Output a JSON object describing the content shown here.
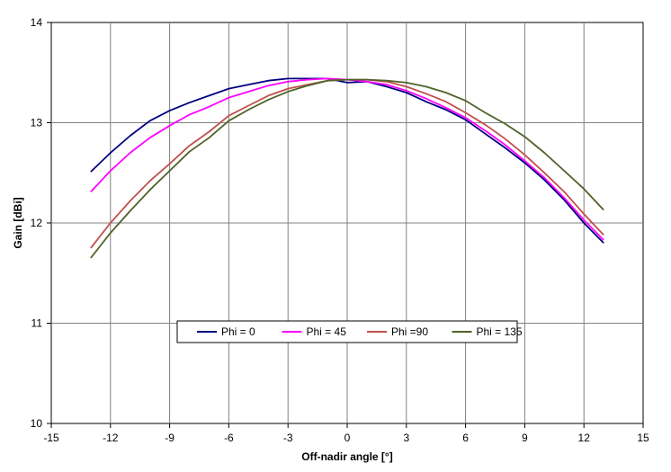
{
  "chart_data": {
    "type": "line",
    "title": "",
    "xlabel": "Off-nadir angle  [°]",
    "ylabel": "Gain [dBi]",
    "xlim": [
      -15,
      15
    ],
    "ylim": [
      10,
      14
    ],
    "xticks": [
      -15,
      -12,
      -9,
      -6,
      -3,
      0,
      3,
      6,
      9,
      12,
      15
    ],
    "yticks": [
      10,
      11,
      12,
      13,
      14
    ],
    "xtick_labels": [
      "-15",
      "-12",
      "-9",
      "-6",
      "-3",
      "0",
      "3",
      "6",
      "9",
      "12",
      "15"
    ],
    "ytick_labels": [
      "10",
      "11",
      "12",
      "13",
      "14"
    ],
    "grid": true,
    "legend_position": "bottom-center",
    "series": [
      {
        "name": "Phi = 0",
        "color": "#000080",
        "x": [
          -13,
          -12,
          -11,
          -10,
          -9,
          -8,
          -7,
          -6,
          -5,
          -4,
          -3,
          -2,
          -1,
          0,
          1,
          2,
          3,
          4,
          5,
          6,
          7,
          8,
          9,
          10,
          11,
          12,
          13
        ],
        "y": [
          12.51,
          12.7,
          12.87,
          13.02,
          13.12,
          13.2,
          13.27,
          13.34,
          13.38,
          13.42,
          13.44,
          13.44,
          13.44,
          13.4,
          13.41,
          13.36,
          13.3,
          13.21,
          13.13,
          13.03,
          12.89,
          12.75,
          12.6,
          12.43,
          12.23,
          12.0,
          11.8
        ]
      },
      {
        "name": "Phi = 45",
        "color": "#ff00ff",
        "x": [
          -13,
          -12,
          -11,
          -10,
          -9,
          -8,
          -7,
          -6,
          -5,
          -4,
          -3,
          -2,
          -1,
          0,
          1,
          2,
          3,
          4,
          5,
          6,
          7,
          8,
          9,
          10,
          11,
          12,
          13
        ],
        "y": [
          12.31,
          12.52,
          12.7,
          12.85,
          12.97,
          13.08,
          13.16,
          13.25,
          13.31,
          13.37,
          13.41,
          13.43,
          13.44,
          13.43,
          13.41,
          13.38,
          13.32,
          13.24,
          13.15,
          13.05,
          12.92,
          12.78,
          12.62,
          12.45,
          12.25,
          12.03,
          11.83
        ]
      },
      {
        "name": "Phi =90",
        "color": "#c0504d",
        "x": [
          -13,
          -12,
          -11,
          -10,
          -9,
          -8,
          -7,
          -6,
          -5,
          -4,
          -3,
          -2,
          -1,
          0,
          1,
          2,
          3,
          4,
          5,
          6,
          7,
          8,
          9,
          10,
          11,
          12,
          13
        ],
        "y": [
          11.75,
          12.0,
          12.22,
          12.42,
          12.59,
          12.77,
          12.91,
          13.07,
          13.17,
          13.27,
          13.34,
          13.38,
          13.42,
          13.43,
          13.43,
          13.41,
          13.36,
          13.29,
          13.21,
          13.1,
          12.98,
          12.84,
          12.68,
          12.5,
          12.31,
          12.09,
          11.88
        ]
      },
      {
        "name": "Phi = 135",
        "color": "#4f6228",
        "x": [
          -13,
          -12,
          -11,
          -10,
          -9,
          -8,
          -7,
          -6,
          -5,
          -4,
          -3,
          -2,
          -1,
          0,
          1,
          2,
          3,
          4,
          5,
          6,
          7,
          8,
          9,
          10,
          11,
          12,
          13
        ],
        "y": [
          11.65,
          11.9,
          12.12,
          12.33,
          12.52,
          12.71,
          12.85,
          13.02,
          13.13,
          13.23,
          13.31,
          13.37,
          13.42,
          13.43,
          13.43,
          13.42,
          13.4,
          13.36,
          13.3,
          13.22,
          13.1,
          12.99,
          12.86,
          12.7,
          12.52,
          12.34,
          12.13
        ]
      }
    ]
  }
}
